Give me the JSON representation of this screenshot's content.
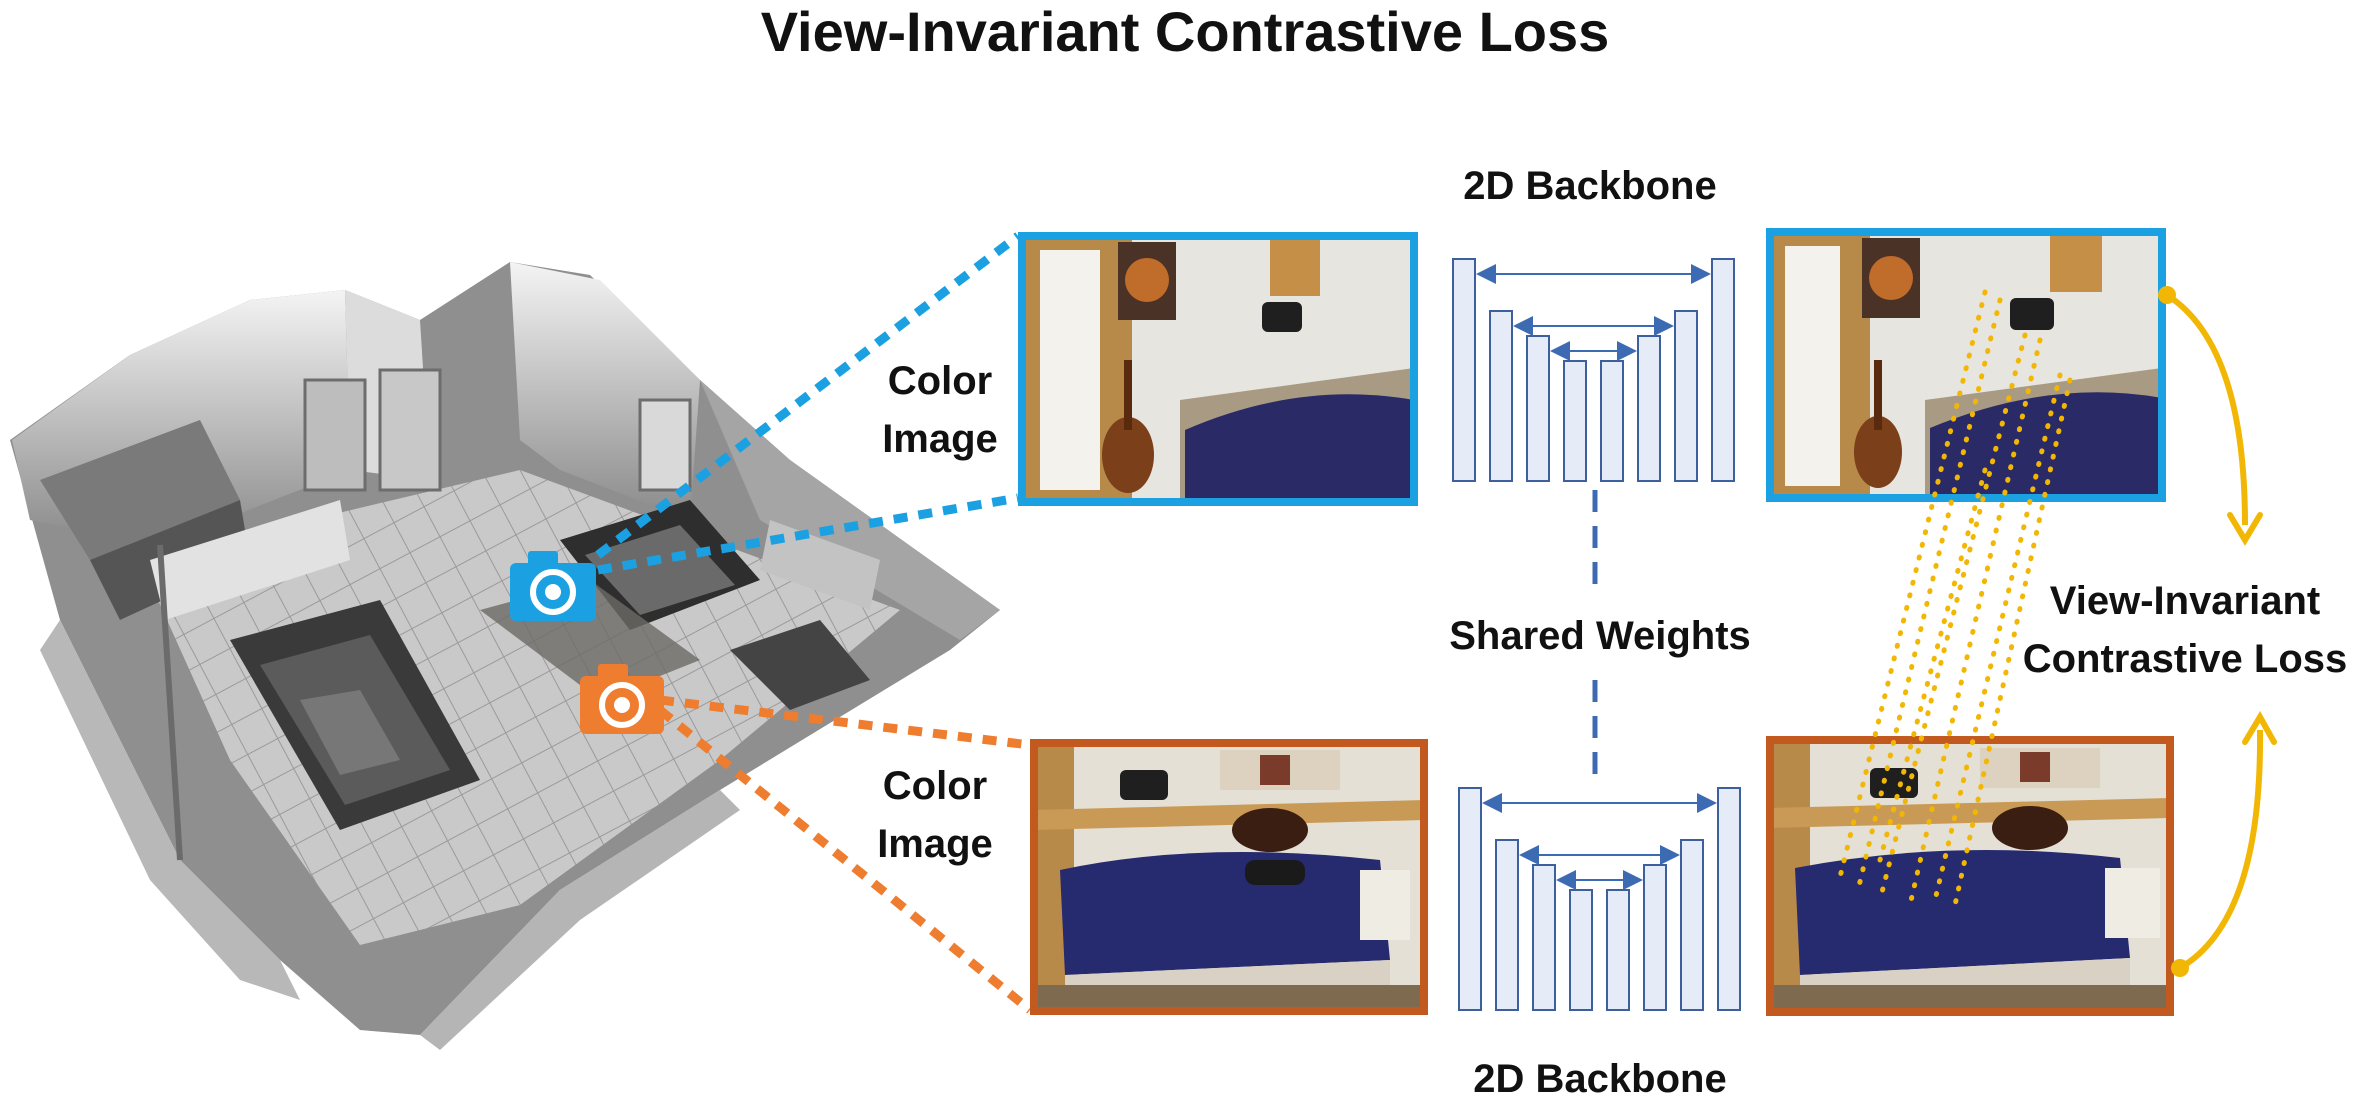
{
  "title": "View-Invariant Contrastive Loss",
  "labels": {
    "color_image_top": [
      "Color",
      "Image"
    ],
    "color_image_bottom": [
      "Color",
      "Image"
    ],
    "backbone_top": "2D Backbone",
    "backbone_bottom": "2D Backbone",
    "shared_weights": "Shared Weights",
    "loss": [
      "View-Invariant",
      "Contrastive Loss"
    ]
  },
  "colors": {
    "view_top": "#1ba1e2",
    "view_bottom": "#e06d2a",
    "frame_bottom": "#c25a1f",
    "backbone_fill": "#e6ecf7",
    "backbone_stroke": "#3d5f9e",
    "arrow": "#3d6bb3",
    "correspondence": "#f2b705"
  },
  "icons": [
    "camera-icon-blue",
    "camera-icon-orange"
  ]
}
